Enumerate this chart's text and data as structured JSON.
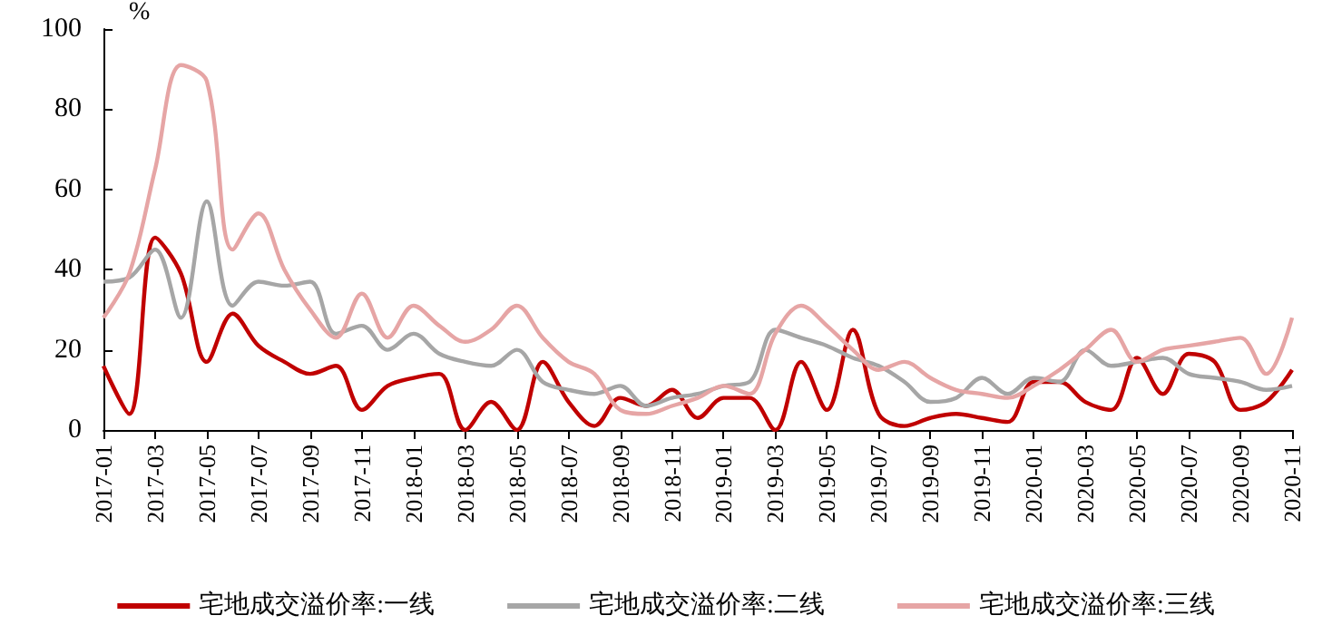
{
  "chart_data": {
    "type": "line",
    "ylabel": "%",
    "categories": [
      "2017-01",
      null,
      "2017-03",
      null,
      "2017-05",
      null,
      "2017-07",
      null,
      "2017-09",
      null,
      "2017-11",
      null,
      "2018-01",
      null,
      "2018-03",
      null,
      "2018-05",
      null,
      "2018-07",
      null,
      "2018-09",
      null,
      "2018-11",
      null,
      "2019-01",
      null,
      "2019-03",
      null,
      "2019-05",
      null,
      "2019-07",
      null,
      "2019-09",
      null,
      "2019-11",
      null,
      "2020-01",
      null,
      "2020-03",
      null,
      "2020-05",
      null,
      "2020-07",
      null,
      "2020-09",
      null,
      "2020-11"
    ],
    "series": [
      {
        "name": "宅地成交溢价率:一线",
        "color": "#c00000",
        "values": [
          16,
          4,
          48,
          39,
          17,
          29,
          21,
          17,
          14,
          16,
          5,
          11,
          13,
          14,
          0,
          7,
          0,
          17,
          7,
          1,
          8,
          6,
          10,
          3,
          8,
          8,
          0,
          17,
          5,
          25,
          4,
          1,
          3,
          4,
          3,
          2,
          12,
          12,
          7,
          5,
          18,
          9,
          19,
          17,
          5,
          7,
          15
        ]
      },
      {
        "name": "宅地成交溢价率:二线",
        "color": "#a6a6a6",
        "values": [
          37,
          38,
          45,
          28,
          57,
          31,
          37,
          36,
          37,
          24,
          26,
          20,
          24,
          19,
          17,
          16,
          20,
          12,
          10,
          9,
          11,
          6,
          8,
          9,
          11,
          12,
          25,
          23,
          21,
          18,
          16,
          12,
          7,
          8,
          13,
          9,
          13,
          12,
          20,
          16,
          17,
          18,
          14,
          13,
          12,
          10,
          11
        ]
      },
      {
        "name": "宅地成交溢价率:三线",
        "color": "#e6a5a5",
        "values": [
          28,
          39,
          65,
          91,
          87,
          45,
          54,
          40,
          30,
          23,
          34,
          23,
          31,
          26,
          22,
          25,
          31,
          23,
          17,
          14,
          5,
          4,
          6,
          8,
          11,
          9,
          24,
          31,
          26,
          20,
          15,
          17,
          13,
          10,
          9,
          8,
          11,
          15,
          20,
          25,
          17,
          20,
          21,
          22,
          23,
          14,
          28
        ]
      }
    ],
    "ylim": [
      0,
      100
    ],
    "yticks": [
      0,
      20,
      40,
      60,
      80,
      100
    ],
    "grid": false,
    "legend": "bottom",
    "marker": "none",
    "line_style": "solid"
  }
}
